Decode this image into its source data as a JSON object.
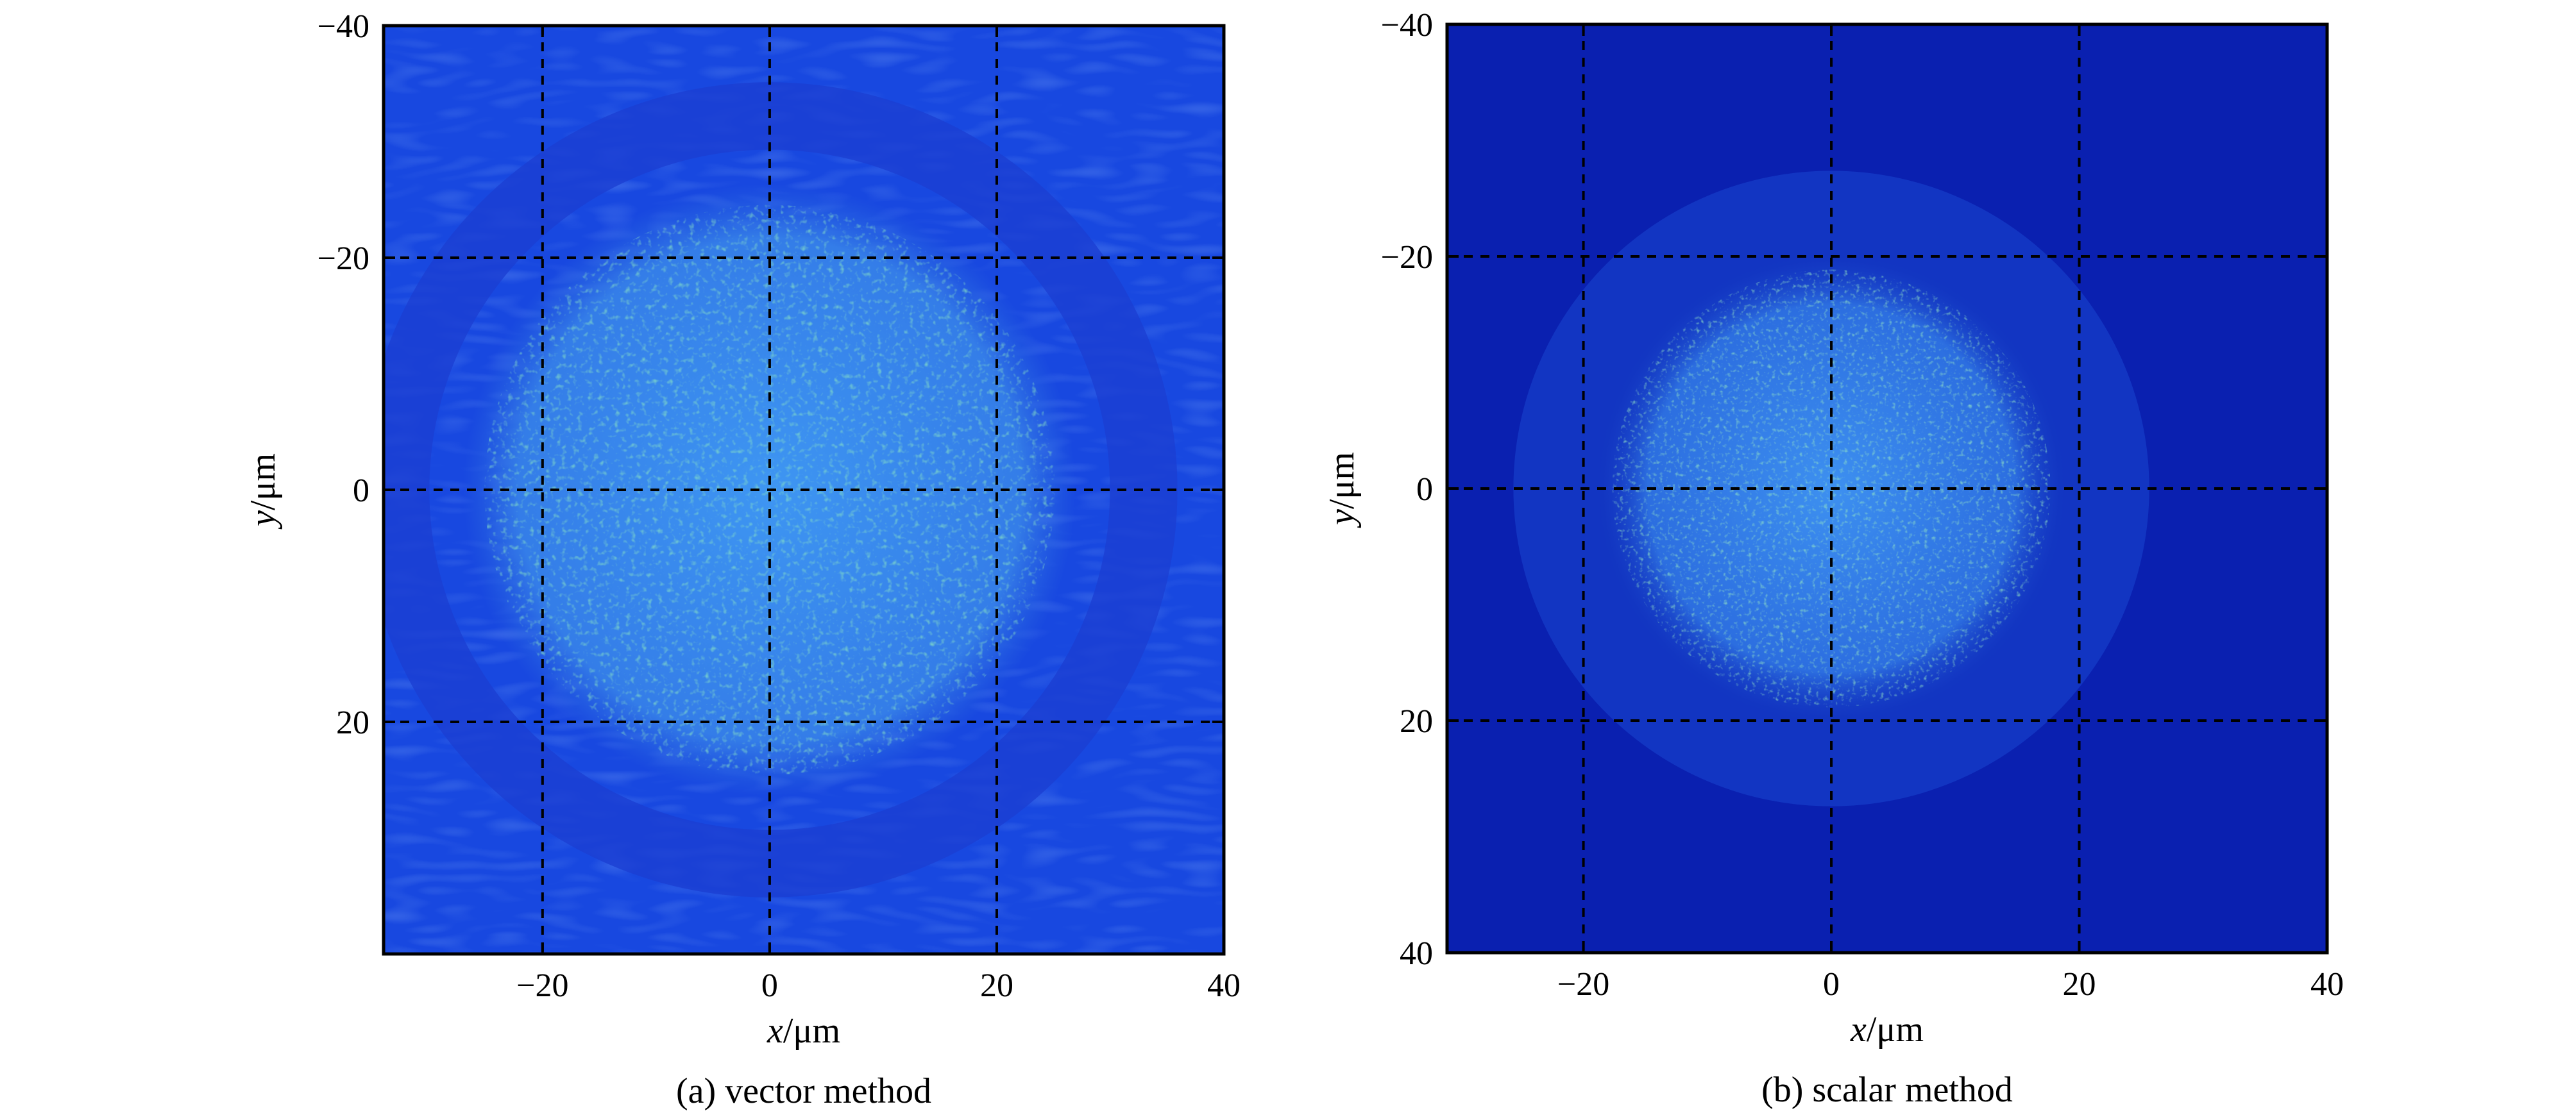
{
  "chart_data": [
    {
      "type": "heatmap",
      "caption": "(a) vector method",
      "xlabel": "x/μm",
      "ylabel": "y/μm",
      "xlabel_parts": {
        "var": "x",
        "unit": "/μm"
      },
      "ylabel_parts": {
        "var": "y",
        "unit": "/μm"
      },
      "xlim": [
        -34,
        40
      ],
      "ylim": [
        -40,
        40
      ],
      "y_inverted": true,
      "xticks": [
        -20,
        0,
        20,
        40
      ],
      "xtick_labels": [
        "−20",
        "0",
        "20",
        "40"
      ],
      "yticks": [
        -40,
        -20,
        0,
        20
      ],
      "ytick_labels": [
        "−40",
        "−20",
        "0",
        "20"
      ],
      "grid": true,
      "grid_style": "dashed",
      "colormap": "jet",
      "spot": {
        "center": [
          0,
          0
        ],
        "radius": 27,
        "shape": "circular speckle",
        "side_rings": true
      },
      "colors": {
        "background": "#1848e0",
        "spot": "#3a8cf0",
        "peak": "#9de060"
      }
    },
    {
      "type": "heatmap",
      "caption": "(b) scalar method",
      "xlabel": "x/μm",
      "ylabel": "y/μm",
      "xlabel_parts": {
        "var": "x",
        "unit": "/μm"
      },
      "ylabel_parts": {
        "var": "y",
        "unit": "/μm"
      },
      "xlim": [
        -31,
        40
      ],
      "ylim": [
        -40,
        40
      ],
      "y_inverted": true,
      "xticks": [
        -20,
        0,
        20,
        40
      ],
      "xtick_labels": [
        "−20",
        "0",
        "20",
        "40"
      ],
      "yticks": [
        -40,
        -20,
        0,
        20,
        40
      ],
      "ytick_labels": [
        "−40",
        "−20",
        "0",
        "20",
        "40"
      ],
      "grid": true,
      "grid_style": "dashed",
      "colormap": "jet",
      "spot": {
        "center": [
          0,
          0
        ],
        "radius": 19,
        "shape": "circular speckle",
        "side_rings": false
      },
      "colors": {
        "background": "#0a20b0",
        "spot": "#3a8cf0",
        "peak": "#9de060"
      }
    }
  ]
}
